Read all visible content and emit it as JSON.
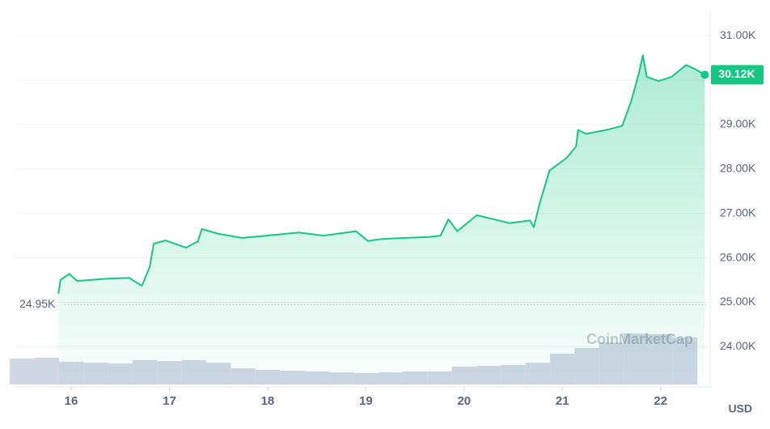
{
  "chart_data": {
    "type": "line",
    "x": [
      15.87,
      15.89,
      15.98,
      16.06,
      16.35,
      16.59,
      16.72,
      16.8,
      16.84,
      16.96,
      17.17,
      17.29,
      17.33,
      17.5,
      17.74,
      17.99,
      18.32,
      18.57,
      18.9,
      19.02,
      19.14,
      19.39,
      19.64,
      19.76,
      19.84,
      19.93,
      20.13,
      20.3,
      20.46,
      20.67,
      20.71,
      20.77,
      20.87,
      21.04,
      21.14,
      21.16,
      21.24,
      21.45,
      21.61,
      21.7,
      21.78,
      21.82,
      21.86,
      21.98,
      22.11,
      22.26,
      22.35,
      22.45
    ],
    "series": [
      {
        "color": "#16c784",
        "values": [
          25190,
          25500,
          25640,
          25480,
          25530,
          25550,
          25370,
          25800,
          26320,
          26390,
          26230,
          26370,
          26650,
          26540,
          26450,
          26500,
          26570,
          26500,
          26600,
          26380,
          26420,
          26450,
          26470,
          26500,
          26870,
          26600,
          26960,
          26870,
          26780,
          26840,
          26690,
          27230,
          27970,
          28240,
          28510,
          28880,
          28790,
          28880,
          28970,
          29520,
          30160,
          30560,
          30070,
          29980,
          30070,
          30340,
          30250,
          30120
        ]
      }
    ],
    "xlim": [
      15.44,
      22.48
    ],
    "xticks": [
      16,
      17,
      18,
      19,
      20,
      21,
      22
    ],
    "ylim": [
      23150,
      31530
    ],
    "yticks": [
      {
        "value": 24000,
        "label": "24.00K"
      },
      {
        "value": 25000,
        "label": "25.00K"
      },
      {
        "value": 26000,
        "label": "26.00K"
      },
      {
        "value": 27000,
        "label": "27.00K"
      },
      {
        "value": 28000,
        "label": "28.00K"
      },
      {
        "value": 29000,
        "label": "29.00K"
      },
      {
        "value": 30000,
        "label": "30.00K"
      },
      {
        "value": 31000,
        "label": "31.00K"
      }
    ],
    "grid": true,
    "current": {
      "value": 30120,
      "label": "30.12K"
    },
    "reference": {
      "value": 24950,
      "label": "24.95K"
    },
    "watermark": "CoinMarketCap",
    "unit": "USD",
    "volume": {
      "color": "#cfd6e4",
      "x": [
        15.5,
        15.75,
        16.0,
        16.25,
        16.5,
        16.75,
        17.0,
        17.25,
        17.5,
        17.75,
        18.0,
        18.25,
        18.5,
        18.75,
        19.0,
        19.25,
        19.5,
        19.75,
        20.0,
        20.25,
        20.5,
        20.75,
        21.0,
        21.25,
        21.5,
        21.75,
        22.0,
        22.25
      ],
      "values": [
        32,
        33,
        28,
        27,
        26,
        30,
        29,
        30,
        27,
        20,
        18,
        17,
        16,
        15,
        14,
        15,
        16,
        16,
        22,
        23,
        24,
        27,
        38,
        45,
        52,
        63,
        62,
        58
      ],
      "lim": [
        0,
        100
      ]
    }
  }
}
